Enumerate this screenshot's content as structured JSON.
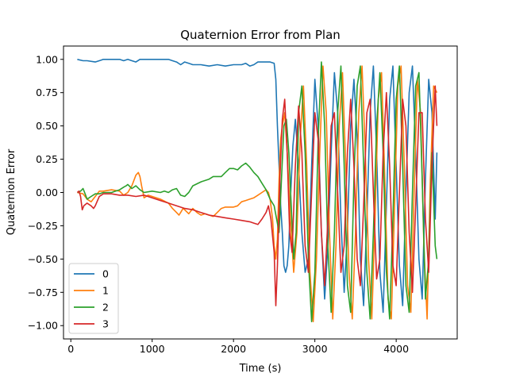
{
  "chart_data": {
    "type": "line",
    "title": "Quaternion Error from Plan",
    "xlabel": "Time (s)",
    "ylabel": "Quaternion Error",
    "xlim": [
      -90,
      4750
    ],
    "ylim": [
      -1.1,
      1.1
    ],
    "xticks": [
      0,
      1000,
      2000,
      3000,
      4000
    ],
    "yticks": [
      -1.0,
      -0.75,
      -0.5,
      -0.25,
      0.0,
      0.25,
      0.5,
      0.75,
      1.0
    ],
    "ytick_labels": [
      "−1.00",
      "−0.75",
      "−0.50",
      "−0.25",
      "0.00",
      "0.25",
      "0.50",
      "0.75",
      "1.00"
    ],
    "grid": false,
    "legend": "lower-left",
    "series": [
      {
        "name": "0",
        "color": "#1f77b4",
        "x": [
          80,
          150,
          200,
          300,
          350,
          400,
          500,
          600,
          650,
          700,
          750,
          800,
          850,
          900,
          1000,
          1100,
          1200,
          1250,
          1300,
          1350,
          1400,
          1450,
          1500,
          1600,
          1700,
          1800,
          1900,
          2000,
          2100,
          2150,
          2200,
          2250,
          2300,
          2350,
          2400,
          2450,
          2500,
          2520,
          2540,
          2560,
          2580,
          2600,
          2620,
          2640,
          2660,
          2680,
          2700,
          2730,
          2760,
          2800,
          2840,
          2880,
          2920,
          2960,
          3000,
          3040,
          3080,
          3120,
          3160,
          3200,
          3240,
          3280,
          3320,
          3360,
          3400,
          3440,
          3480,
          3520,
          3560,
          3600,
          3640,
          3680,
          3720,
          3760,
          3800,
          3840,
          3880,
          3920,
          3960,
          4000,
          4040,
          4080,
          4120,
          4160,
          4200,
          4240,
          4280,
          4320,
          4360,
          4400,
          4440,
          4480,
          4500
        ],
        "y": [
          1.0,
          0.99,
          0.99,
          0.98,
          0.99,
          1.0,
          1.0,
          1.0,
          0.99,
          1.0,
          0.99,
          0.98,
          1.0,
          1.0,
          1.0,
          1.0,
          1.0,
          0.99,
          0.98,
          0.96,
          0.98,
          0.97,
          0.96,
          0.96,
          0.95,
          0.96,
          0.95,
          0.96,
          0.96,
          0.97,
          0.95,
          0.96,
          0.98,
          0.98,
          0.98,
          0.98,
          0.97,
          0.85,
          0.5,
          0.2,
          -0.1,
          -0.3,
          -0.55,
          -0.6,
          -0.55,
          -0.4,
          -0.05,
          0.35,
          0.55,
          0.2,
          -0.3,
          -0.6,
          -0.5,
          0.2,
          0.85,
          0.5,
          -0.3,
          -0.8,
          -0.4,
          0.3,
          0.9,
          0.6,
          -0.2,
          -0.75,
          -0.3,
          0.5,
          0.85,
          0.4,
          -0.5,
          -0.85,
          -0.2,
          0.6,
          0.95,
          0.3,
          -0.6,
          -0.9,
          -0.1,
          0.7,
          0.95,
          0.2,
          -0.55,
          -0.85,
          0.0,
          0.75,
          0.95,
          0.3,
          -0.5,
          -0.8,
          0.1,
          0.85,
          0.6,
          -0.2,
          0.3
        ]
      },
      {
        "name": "1",
        "color": "#ff7f0e",
        "x": [
          80,
          150,
          200,
          250,
          300,
          350,
          400,
          500,
          600,
          650,
          700,
          750,
          800,
          830,
          850,
          870,
          900,
          950,
          1000,
          1100,
          1200,
          1250,
          1300,
          1330,
          1350,
          1380,
          1400,
          1450,
          1500,
          1550,
          1600,
          1650,
          1700,
          1750,
          1800,
          1850,
          1900,
          2000,
          2050,
          2100,
          2150,
          2200,
          2250,
          2300,
          2350,
          2400,
          2430,
          2450,
          2480,
          2500,
          2520,
          2540,
          2560,
          2580,
          2600,
          2630,
          2660,
          2700,
          2740,
          2780,
          2820,
          2860,
          2900,
          2940,
          2980,
          3020,
          3060,
          3100,
          3140,
          3180,
          3220,
          3260,
          3300,
          3340,
          3380,
          3420,
          3460,
          3500,
          3540,
          3580,
          3620,
          3660,
          3700,
          3740,
          3780,
          3820,
          3860,
          3900,
          3940,
          3980,
          4020,
          4060,
          4100,
          4140,
          4180,
          4220,
          4260,
          4300,
          4340,
          4380,
          4420,
          4460,
          4500
        ],
        "y": [
          0.0,
          -0.01,
          -0.05,
          -0.07,
          -0.03,
          0.01,
          0.01,
          0.02,
          0.01,
          -0.02,
          0.0,
          0.05,
          0.13,
          0.15,
          0.12,
          0.05,
          -0.04,
          -0.02,
          -0.03,
          -0.05,
          -0.08,
          -0.12,
          -0.15,
          -0.17,
          -0.15,
          -0.12,
          -0.13,
          -0.16,
          -0.12,
          -0.15,
          -0.17,
          -0.16,
          -0.17,
          -0.18,
          -0.15,
          -0.12,
          -0.11,
          -0.11,
          -0.1,
          -0.07,
          -0.06,
          -0.05,
          -0.04,
          -0.02,
          0.0,
          0.02,
          0.0,
          -0.05,
          -0.2,
          -0.4,
          -0.5,
          -0.35,
          0.1,
          0.4,
          0.5,
          0.6,
          0.3,
          -0.2,
          -0.6,
          -0.3,
          0.4,
          0.8,
          0.2,
          -0.6,
          -0.97,
          -0.5,
          0.3,
          0.95,
          0.6,
          -0.3,
          -0.95,
          -0.4,
          0.5,
          0.9,
          0.2,
          -0.6,
          -0.95,
          -0.3,
          0.6,
          0.95,
          0.3,
          -0.5,
          -0.95,
          -0.2,
          0.7,
          0.9,
          0.1,
          -0.8,
          -0.95,
          -0.1,
          0.8,
          0.95,
          0.2,
          -0.7,
          -0.9,
          0.0,
          0.85,
          0.6,
          -0.4,
          -0.95,
          0.1,
          0.8,
          0.75
        ]
      },
      {
        "name": "2",
        "color": "#2ca02c",
        "x": [
          80,
          120,
          150,
          170,
          200,
          250,
          300,
          350,
          400,
          500,
          600,
          650,
          680,
          700,
          750,
          800,
          850,
          900,
          1000,
          1100,
          1150,
          1200,
          1250,
          1300,
          1350,
          1400,
          1450,
          1500,
          1600,
          1700,
          1750,
          1800,
          1850,
          1900,
          1950,
          2000,
          2050,
          2100,
          2150,
          2200,
          2250,
          2300,
          2350,
          2400,
          2450,
          2500,
          2530,
          2560,
          2590,
          2620,
          2650,
          2680,
          2710,
          2740,
          2770,
          2800,
          2840,
          2880,
          2920,
          2960,
          3000,
          3040,
          3080,
          3120,
          3160,
          3200,
          3240,
          3280,
          3320,
          3360,
          3400,
          3440,
          3480,
          3520,
          3560,
          3600,
          3640,
          3680,
          3720,
          3760,
          3800,
          3840,
          3880,
          3920,
          3960,
          4000,
          4040,
          4080,
          4120,
          4160,
          4200,
          4240,
          4280,
          4320,
          4360,
          4400,
          4440,
          4480,
          4500
        ],
        "y": [
          0.0,
          0.01,
          0.03,
          0.0,
          -0.05,
          -0.03,
          -0.01,
          -0.01,
          0.0,
          0.0,
          0.02,
          0.04,
          0.05,
          0.06,
          0.03,
          0.05,
          0.02,
          0.0,
          0.01,
          0.0,
          0.01,
          0.0,
          0.02,
          0.03,
          -0.02,
          -0.03,
          0.0,
          0.05,
          0.08,
          0.1,
          0.12,
          0.12,
          0.12,
          0.15,
          0.18,
          0.18,
          0.17,
          0.2,
          0.22,
          0.19,
          0.15,
          0.12,
          0.07,
          0.02,
          -0.05,
          -0.1,
          -0.2,
          -0.3,
          0.1,
          0.5,
          0.55,
          0.3,
          -0.1,
          -0.5,
          -0.3,
          0.6,
          0.8,
          0.3,
          -0.5,
          -0.97,
          -0.6,
          0.4,
          0.98,
          0.5,
          -0.4,
          -0.9,
          -0.3,
          0.6,
          0.95,
          0.2,
          -0.7,
          -0.9,
          0.1,
          0.8,
          0.95,
          0.2,
          -0.6,
          -0.95,
          -0.3,
          0.5,
          0.9,
          0.3,
          -0.6,
          -0.95,
          -0.2,
          0.7,
          0.95,
          0.2,
          -0.7,
          -0.9,
          0.0,
          0.8,
          0.9,
          0.1,
          -0.8,
          -0.5,
          0.3,
          -0.4,
          -0.5
        ]
      },
      {
        "name": "3",
        "color": "#d62728",
        "x": [
          80,
          100,
          120,
          140,
          160,
          200,
          250,
          280,
          300,
          350,
          400,
          500,
          600,
          700,
          800,
          900,
          1000,
          1100,
          1200,
          1300,
          1400,
          1500,
          1600,
          1700,
          1800,
          1900,
          2000,
          2100,
          2200,
          2250,
          2300,
          2350,
          2400,
          2430,
          2460,
          2500,
          2520,
          2540,
          2570,
          2600,
          2630,
          2660,
          2690,
          2720,
          2760,
          2800,
          2840,
          2880,
          2920,
          2960,
          3000,
          3040,
          3080,
          3120,
          3160,
          3200,
          3240,
          3280,
          3320,
          3360,
          3400,
          3440,
          3480,
          3520,
          3560,
          3600,
          3640,
          3680,
          3720,
          3760,
          3800,
          3840,
          3880,
          3920,
          3960,
          4000,
          4040,
          4080,
          4120,
          4160,
          4200,
          4240,
          4280,
          4320,
          4360,
          4400,
          4440,
          4480,
          4500
        ],
        "y": [
          0.0,
          0.01,
          -0.03,
          -0.13,
          -0.1,
          -0.08,
          -0.1,
          -0.12,
          -0.1,
          -0.03,
          -0.01,
          -0.01,
          -0.02,
          -0.02,
          -0.03,
          -0.02,
          -0.04,
          -0.06,
          -0.08,
          -0.1,
          -0.12,
          -0.13,
          -0.15,
          -0.17,
          -0.18,
          -0.19,
          -0.2,
          -0.21,
          -0.22,
          -0.23,
          -0.24,
          -0.2,
          -0.15,
          -0.1,
          -0.2,
          -0.45,
          -0.85,
          -0.55,
          0.1,
          0.55,
          0.7,
          0.3,
          -0.3,
          -0.45,
          0.2,
          0.65,
          0.3,
          -0.4,
          -0.6,
          0.0,
          0.6,
          0.4,
          -0.3,
          -0.7,
          -0.2,
          0.5,
          0.6,
          0.0,
          -0.6,
          -0.4,
          0.3,
          0.7,
          0.2,
          -0.5,
          -0.7,
          -0.1,
          0.6,
          0.7,
          0.0,
          -0.65,
          -0.5,
          0.3,
          0.75,
          0.2,
          -0.55,
          -0.7,
          0.0,
          0.7,
          0.5,
          -0.3,
          -0.75,
          -0.1,
          0.6,
          0.6,
          -0.2,
          -0.6,
          0.2,
          0.8,
          0.5
        ]
      }
    ]
  }
}
